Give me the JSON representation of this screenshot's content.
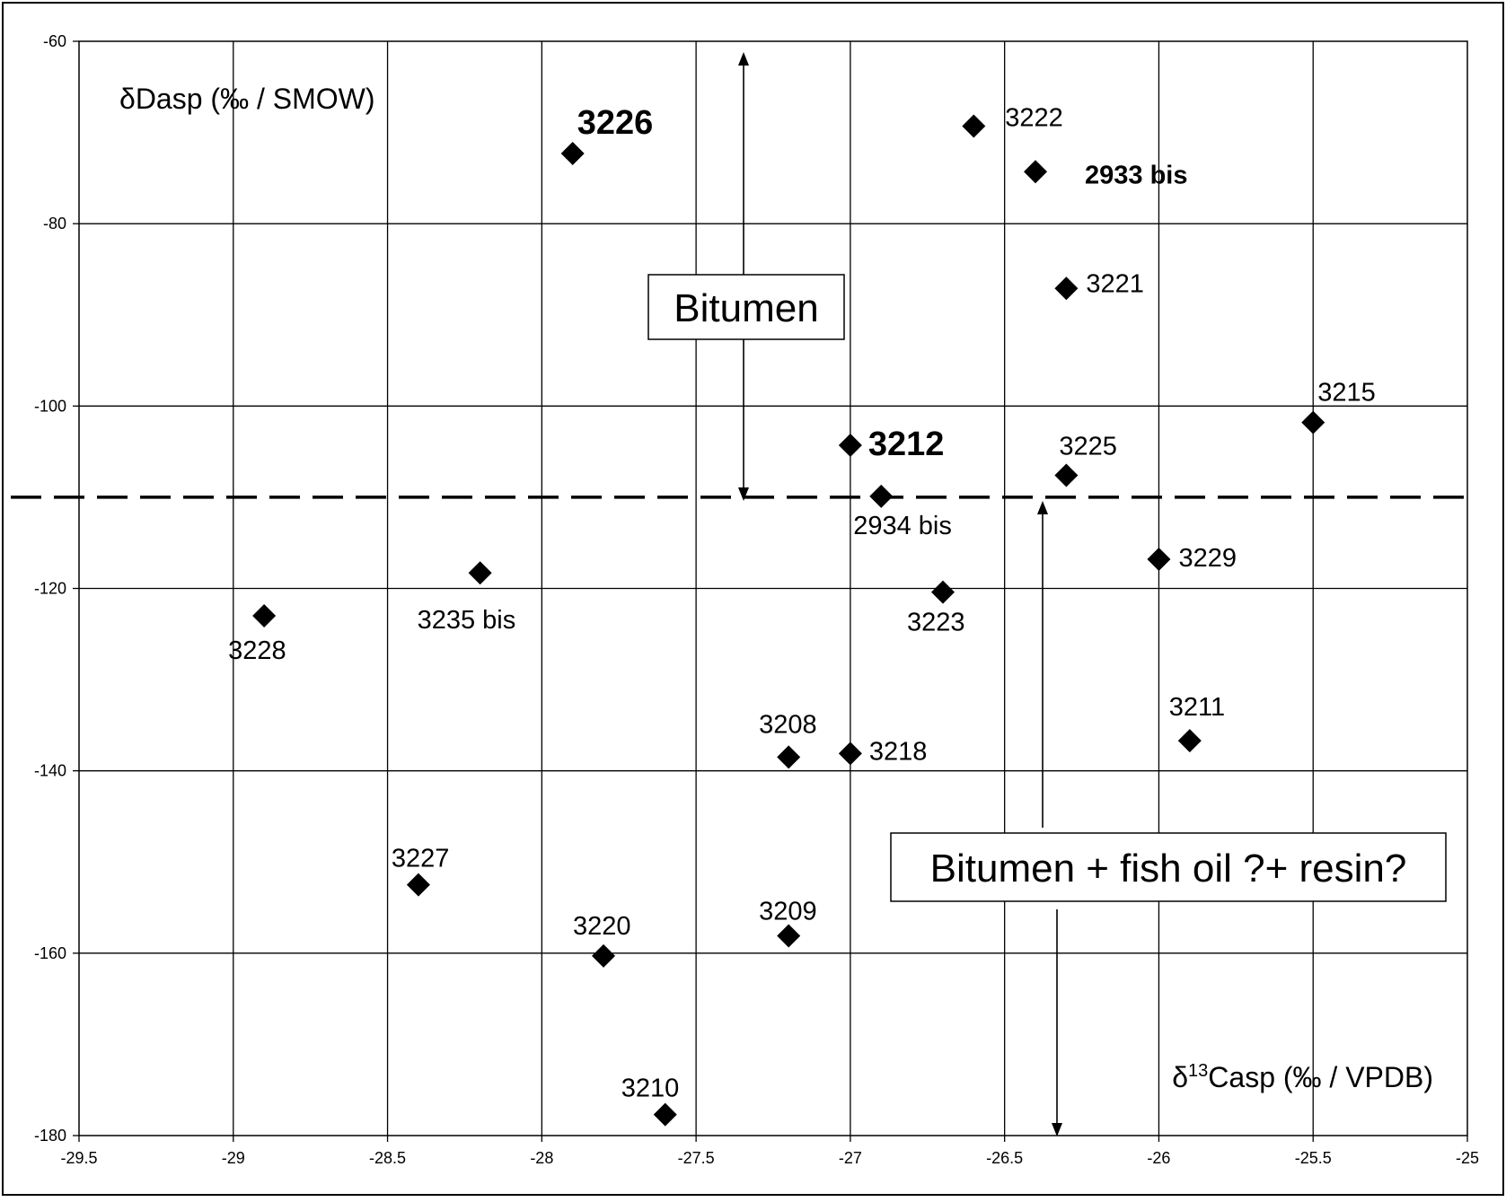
{
  "chart_data": {
    "type": "scatter",
    "title": "",
    "ylabel": "δDasp (‰ / SMOW)",
    "xlabel_parts": [
      "δ",
      "13",
      "Casp (‰ / VPDB)"
    ],
    "xlim": [
      -29.5,
      -25
    ],
    "ylim": [
      -180,
      -60
    ],
    "xticks": [
      -29.5,
      -29,
      -28.5,
      -28,
      -27.5,
      -27,
      -26.5,
      -26,
      -25.5,
      -25
    ],
    "yticks": [
      -60,
      -80,
      -100,
      -120,
      -140,
      -160,
      -180
    ],
    "grid": true,
    "threshold_y": -110,
    "marker_color": "#000000",
    "points": [
      {
        "label": "3226",
        "x": -27.9,
        "y": -72.3,
        "style": "bold-lg"
      },
      {
        "label": "3222",
        "x": -26.6,
        "y": -69.3,
        "style": "normal"
      },
      {
        "label": "2933 bis",
        "x": -26.4,
        "y": -74.3,
        "style": "bold-sm"
      },
      {
        "label": "3221",
        "x": -26.3,
        "y": -87.1,
        "style": "normal"
      },
      {
        "label": "3215",
        "x": -25.5,
        "y": -101.8,
        "style": "normal"
      },
      {
        "label": "3212",
        "x": -27.0,
        "y": -104.3,
        "style": "bold-lg"
      },
      {
        "label": "3225",
        "x": -26.3,
        "y": -107.6,
        "style": "normal"
      },
      {
        "label": "2934 bis",
        "x": -26.9,
        "y": -109.9,
        "style": "normal"
      },
      {
        "label": "3229",
        "x": -26.0,
        "y": -116.8,
        "style": "normal"
      },
      {
        "label": "3223",
        "x": -26.7,
        "y": -120.4,
        "style": "normal"
      },
      {
        "label": "3235 bis",
        "x": -28.2,
        "y": -118.3,
        "style": "normal"
      },
      {
        "label": "3228",
        "x": -28.9,
        "y": -123.0,
        "style": "normal"
      },
      {
        "label": "3208",
        "x": -27.2,
        "y": -138.5,
        "style": "normal"
      },
      {
        "label": "3218",
        "x": -27.0,
        "y": -138.1,
        "style": "normal"
      },
      {
        "label": "3211",
        "x": -25.9,
        "y": -136.7,
        "style": "normal"
      },
      {
        "label": "3227",
        "x": -28.4,
        "y": -152.5,
        "style": "normal"
      },
      {
        "label": "3209",
        "x": -27.2,
        "y": -158.1,
        "style": "normal"
      },
      {
        "label": "3220",
        "x": -27.8,
        "y": -160.3,
        "style": "normal"
      },
      {
        "label": "3210",
        "x": -27.6,
        "y": -177.7,
        "style": "normal"
      }
    ],
    "annotations": [
      {
        "text": "Bitumen",
        "arrow": "up"
      },
      {
        "text": "Bitumen + fish oil ?+ resin?",
        "arrow": "down"
      }
    ]
  }
}
